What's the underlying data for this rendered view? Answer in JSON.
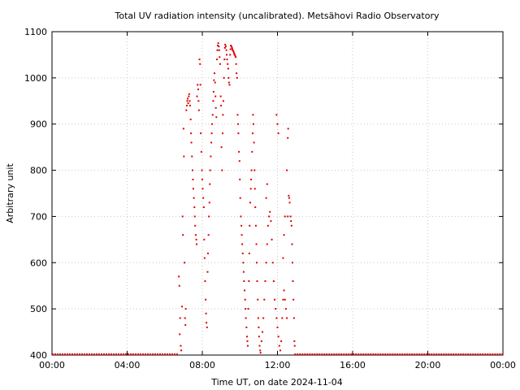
{
  "chart_data": {
    "type": "scatter",
    "title": "Total UV radiation intensity (uncalibrated). Metsähovi Radio Observatory",
    "xlabel": "Time UT, on date 2024-11-04",
    "ylabel": "Arbitrary unit",
    "x_unit": "hours UT",
    "xlim": [
      0,
      24
    ],
    "ylim": [
      400,
      1100
    ],
    "xticks": [
      {
        "value": 0,
        "label": "00:00"
      },
      {
        "value": 4,
        "label": "04:00"
      },
      {
        "value": 8,
        "label": "08:00"
      },
      {
        "value": 12,
        "label": "12:00"
      },
      {
        "value": 16,
        "label": "16:00"
      },
      {
        "value": 20,
        "label": "20:00"
      },
      {
        "value": 24,
        "label": "00:00"
      }
    ],
    "yticks": [
      400,
      500,
      600,
      700,
      800,
      900,
      1000,
      1100
    ],
    "grid": true,
    "legend": "none",
    "series_color": "#e00000",
    "baseline": {
      "value": 400,
      "x_ranges": [
        [
          0,
          6.7
        ],
        [
          12.9,
          24
        ]
      ]
    },
    "points": [
      [
        6.75,
        570
      ],
      [
        6.78,
        550
      ],
      [
        6.8,
        445
      ],
      [
        6.82,
        480
      ],
      [
        6.85,
        420
      ],
      [
        6.88,
        410
      ],
      [
        6.92,
        505
      ],
      [
        6.95,
        700
      ],
      [
        6.97,
        660
      ],
      [
        7.0,
        890
      ],
      [
        7.02,
        830
      ],
      [
        7.05,
        600
      ],
      [
        7.08,
        480
      ],
      [
        7.1,
        465
      ],
      [
        7.12,
        500
      ],
      [
        7.15,
        930
      ],
      [
        7.18,
        940
      ],
      [
        7.2,
        950
      ],
      [
        7.22,
        955
      ],
      [
        7.25,
        945
      ],
      [
        7.28,
        960
      ],
      [
        7.3,
        965
      ],
      [
        7.33,
        950
      ],
      [
        7.35,
        940
      ],
      [
        7.38,
        910
      ],
      [
        7.4,
        880
      ],
      [
        7.42,
        860
      ],
      [
        7.45,
        830
      ],
      [
        7.48,
        800
      ],
      [
        7.5,
        780
      ],
      [
        7.52,
        760
      ],
      [
        7.55,
        740
      ],
      [
        7.58,
        720
      ],
      [
        7.6,
        700
      ],
      [
        7.62,
        680
      ],
      [
        7.65,
        660
      ],
      [
        7.68,
        650
      ],
      [
        7.7,
        640
      ],
      [
        7.72,
        960
      ],
      [
        7.75,
        985
      ],
      [
        7.78,
        975
      ],
      [
        7.8,
        950
      ],
      [
        7.82,
        930
      ],
      [
        7.85,
        1040
      ],
      [
        7.88,
        1030
      ],
      [
        7.9,
        985
      ],
      [
        7.92,
        880
      ],
      [
        7.95,
        840
      ],
      [
        7.98,
        800
      ],
      [
        8.0,
        780
      ],
      [
        8.02,
        760
      ],
      [
        8.05,
        740
      ],
      [
        8.08,
        720
      ],
      [
        8.1,
        650
      ],
      [
        8.12,
        610
      ],
      [
        8.15,
        560
      ],
      [
        8.18,
        520
      ],
      [
        8.2,
        490
      ],
      [
        8.22,
        470
      ],
      [
        8.25,
        460
      ],
      [
        8.28,
        580
      ],
      [
        8.3,
        620
      ],
      [
        8.33,
        660
      ],
      [
        8.35,
        700
      ],
      [
        8.38,
        730
      ],
      [
        8.4,
        770
      ],
      [
        8.42,
        800
      ],
      [
        8.45,
        830
      ],
      [
        8.48,
        860
      ],
      [
        8.5,
        880
      ],
      [
        8.52,
        900
      ],
      [
        8.55,
        920
      ],
      [
        8.58,
        950
      ],
      [
        8.6,
        970
      ],
      [
        8.62,
        995
      ],
      [
        8.65,
        1010
      ],
      [
        8.68,
        990
      ],
      [
        8.7,
        960
      ],
      [
        8.72,
        935
      ],
      [
        8.75,
        915
      ],
      [
        8.78,
        1040
      ],
      [
        8.8,
        1060
      ],
      [
        8.82,
        1070
      ],
      [
        8.85,
        1075
      ],
      [
        8.88,
        1068
      ],
      [
        8.9,
        1060
      ],
      [
        8.92,
        1045
      ],
      [
        8.95,
        1030
      ],
      [
        8.98,
        960
      ],
      [
        9.0,
        940
      ],
      [
        9.02,
        850
      ],
      [
        9.05,
        800
      ],
      [
        9.08,
        880
      ],
      [
        9.1,
        920
      ],
      [
        9.12,
        950
      ],
      [
        9.15,
        1000
      ],
      [
        9.18,
        1040
      ],
      [
        9.2,
        1065
      ],
      [
        9.22,
        1072
      ],
      [
        9.25,
        1068
      ],
      [
        9.28,
        1060
      ],
      [
        9.3,
        1050
      ],
      [
        9.32,
        1040
      ],
      [
        9.35,
        1030
      ],
      [
        9.38,
        1020
      ],
      [
        9.4,
        1000
      ],
      [
        9.42,
        990
      ],
      [
        9.45,
        985
      ],
      [
        9.48,
        1050
      ],
      [
        9.5,
        1062
      ],
      [
        9.52,
        1070
      ],
      [
        9.55,
        1068
      ],
      [
        9.58,
        1065
      ],
      [
        9.6,
        1062
      ],
      [
        9.62,
        1060
      ],
      [
        9.65,
        1058
      ],
      [
        9.68,
        1055
      ],
      [
        9.7,
        1052
      ],
      [
        9.72,
        1050
      ],
      [
        9.75,
        1048
      ],
      [
        9.78,
        1045
      ],
      [
        9.8,
        1030
      ],
      [
        9.82,
        1010
      ],
      [
        9.85,
        1000
      ],
      [
        9.88,
        920
      ],
      [
        9.9,
        900
      ],
      [
        9.92,
        880
      ],
      [
        9.95,
        840
      ],
      [
        9.98,
        820
      ],
      [
        10.0,
        780
      ],
      [
        10.02,
        740
      ],
      [
        10.05,
        700
      ],
      [
        10.08,
        680
      ],
      [
        10.1,
        660
      ],
      [
        10.12,
        640
      ],
      [
        10.15,
        620
      ],
      [
        10.18,
        600
      ],
      [
        10.2,
        580
      ],
      [
        10.22,
        560
      ],
      [
        10.25,
        540
      ],
      [
        10.28,
        520
      ],
      [
        10.3,
        500
      ],
      [
        10.32,
        480
      ],
      [
        10.35,
        460
      ],
      [
        10.38,
        440
      ],
      [
        10.4,
        430
      ],
      [
        10.42,
        420
      ],
      [
        10.45,
        500
      ],
      [
        10.48,
        560
      ],
      [
        10.5,
        620
      ],
      [
        10.52,
        680
      ],
      [
        10.55,
        730
      ],
      [
        10.58,
        760
      ],
      [
        10.6,
        780
      ],
      [
        10.62,
        800
      ],
      [
        10.65,
        840
      ],
      [
        10.68,
        880
      ],
      [
        10.7,
        920
      ],
      [
        10.72,
        900
      ],
      [
        10.75,
        860
      ],
      [
        10.78,
        800
      ],
      [
        10.8,
        760
      ],
      [
        10.82,
        720
      ],
      [
        10.85,
        680
      ],
      [
        10.88,
        640
      ],
      [
        10.9,
        600
      ],
      [
        10.92,
        560
      ],
      [
        10.95,
        520
      ],
      [
        10.98,
        480
      ],
      [
        11.0,
        460
      ],
      [
        11.02,
        440
      ],
      [
        11.05,
        420
      ],
      [
        11.08,
        410
      ],
      [
        11.1,
        405
      ],
      [
        11.15,
        430
      ],
      [
        11.2,
        450
      ],
      [
        11.25,
        480
      ],
      [
        11.3,
        520
      ],
      [
        11.35,
        560
      ],
      [
        11.4,
        600
      ],
      [
        11.45,
        640
      ],
      [
        11.5,
        680
      ],
      [
        11.55,
        700
      ],
      [
        11.6,
        710
      ],
      [
        11.65,
        690
      ],
      [
        11.7,
        650
      ],
      [
        11.75,
        600
      ],
      [
        11.8,
        560
      ],
      [
        11.85,
        520
      ],
      [
        11.9,
        500
      ],
      [
        11.95,
        480
      ],
      [
        12.0,
        460
      ],
      [
        12.05,
        440
      ],
      [
        12.1,
        420
      ],
      [
        12.15,
        410
      ],
      [
        12.2,
        430
      ],
      [
        12.25,
        480
      ],
      [
        12.3,
        520
      ],
      [
        12.35,
        540
      ],
      [
        12.4,
        520
      ],
      [
        12.45,
        500
      ],
      [
        12.5,
        480
      ],
      [
        12.55,
        700
      ],
      [
        12.6,
        745
      ],
      [
        12.62,
        740
      ],
      [
        12.65,
        730
      ],
      [
        12.7,
        700
      ],
      [
        12.72,
        690
      ],
      [
        12.75,
        680
      ],
      [
        12.78,
        640
      ],
      [
        12.8,
        600
      ],
      [
        12.82,
        560
      ],
      [
        12.85,
        520
      ],
      [
        12.88,
        480
      ],
      [
        12.9,
        430
      ],
      [
        12.92,
        420
      ],
      [
        12.5,
        800
      ],
      [
        12.55,
        870
      ],
      [
        12.57,
        890
      ],
      [
        11.95,
        920
      ],
      [
        12.0,
        900
      ],
      [
        12.05,
        880
      ],
      [
        12.3,
        610
      ],
      [
        12.35,
        660
      ],
      [
        12.4,
        700
      ],
      [
        11.4,
        740
      ],
      [
        11.45,
        770
      ]
    ]
  }
}
